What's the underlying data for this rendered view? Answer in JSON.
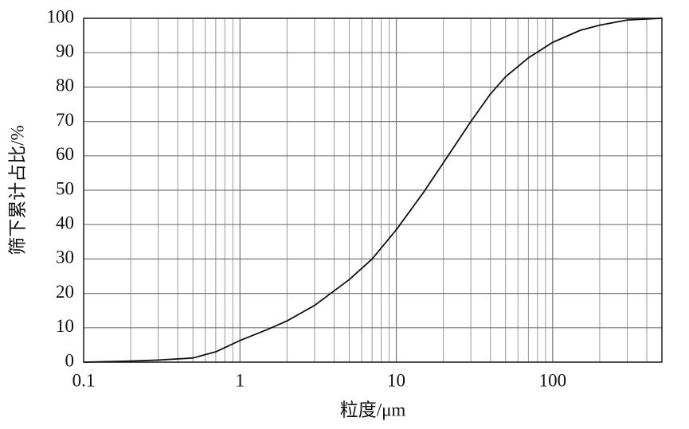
{
  "chart_data": {
    "type": "line",
    "x_label": "粒度/μm",
    "y_label": "筛下累计占比/%",
    "log_x": true,
    "grid": true,
    "xlim": [
      0.1,
      500
    ],
    "ylim": [
      0,
      100
    ],
    "xticks": [
      0.1,
      1,
      10,
      100
    ],
    "xminorticks": [
      0.2,
      0.3,
      0.4,
      0.5,
      0.6,
      0.7,
      0.8,
      0.9,
      2,
      3,
      4,
      5,
      6,
      7,
      8,
      9,
      20,
      30,
      40,
      50,
      60,
      70,
      80,
      90,
      200,
      300,
      400
    ],
    "yticks": [
      0,
      10,
      20,
      30,
      40,
      50,
      60,
      70,
      80,
      90,
      100
    ],
    "x": [
      0.1,
      0.2,
      0.3,
      0.5,
      0.7,
      1,
      1.5,
      2,
      3,
      5,
      7,
      10,
      15,
      20,
      30,
      40,
      50,
      70,
      100,
      150,
      200,
      300,
      500
    ],
    "series": [
      {
        "color": "#111111",
        "values": [
          0,
          0.3,
          0.6,
          1.2,
          3,
          6.3,
          9.5,
          12,
          16.5,
          24,
          30,
          38.5,
          49.5,
          58,
          70,
          78,
          83,
          88.5,
          93,
          96.5,
          98,
          99.5,
          100
        ]
      }
    ]
  }
}
